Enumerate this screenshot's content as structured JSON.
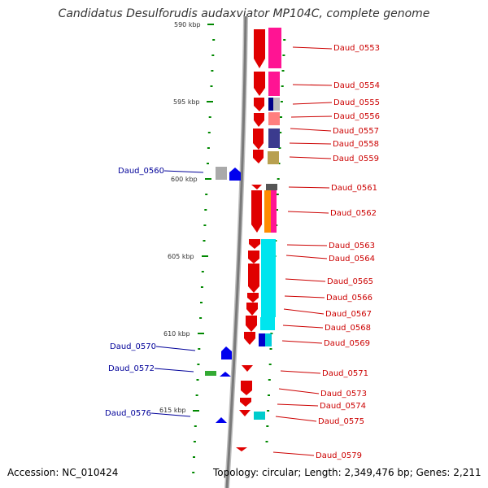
{
  "title": "Candidatus Desulforudis audaxviator MP104C, complete genome",
  "footer": {
    "accession": "Accession: NC_010424",
    "topology": "Topology: circular; Length: 2,349,476 bp; Genes: 2,211"
  },
  "colors": {
    "forward_label": "#cc0000",
    "reverse_label": "#000099",
    "backbone": "#808080",
    "tick_green": "#008800"
  },
  "kbp_labels": [
    "590 kbp",
    "595 kbp",
    "600 kbp",
    "605 kbp",
    "610 kbp",
    "615 kbp"
  ],
  "genes_forward": [
    "Daud_0553",
    "Daud_0554",
    "Daud_0555",
    "Daud_0556",
    "Daud_0557",
    "Daud_0558",
    "Daud_0559",
    "Daud_0561",
    "Daud_0562",
    "Daud_0563",
    "Daud_0564",
    "Daud_0565",
    "Daud_0566",
    "Daud_0567",
    "Daud_0568",
    "Daud_0569",
    "Daud_0571",
    "Daud_0573",
    "Daud_0574",
    "Daud_0575",
    "Daud_0579"
  ],
  "genes_reverse": [
    "Daud_0560",
    "Daud_0570",
    "Daud_0572",
    "Daud_0576"
  ]
}
